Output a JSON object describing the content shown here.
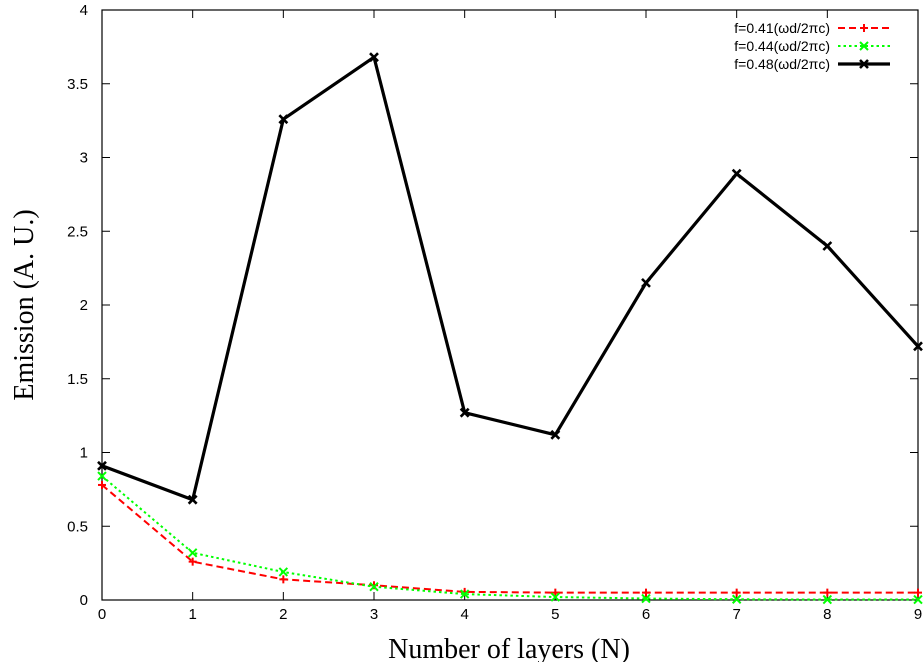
{
  "chart_data": {
    "type": "line",
    "title": "",
    "xlabel": "Number of layers (N)",
    "ylabel": "Emission (A. U.)",
    "xlim": [
      0,
      9
    ],
    "ylim": [
      0,
      4
    ],
    "x_ticks": [
      "0",
      "1",
      "2",
      "3",
      "4",
      "5",
      "6",
      "7",
      "8",
      "9"
    ],
    "y_ticks": [
      "0",
      "0.5",
      "1",
      "1.5",
      "2",
      "2.5",
      "3",
      "3.5",
      "4"
    ],
    "grid": false,
    "legend_position": "top-right",
    "x": [
      0,
      1,
      2,
      3,
      4,
      5,
      6,
      7,
      8,
      9
    ],
    "series": [
      {
        "name": "f=0.41(ωd/2πc)",
        "color": "#ff0000",
        "line_style": "dashed",
        "marker": "plus",
        "values": [
          0.78,
          0.26,
          0.14,
          0.1,
          0.055,
          0.05,
          0.05,
          0.05,
          0.05,
          0.05
        ]
      },
      {
        "name": "f=0.44(ωd/2πc)",
        "color": "#00ff00",
        "line_style": "dotted",
        "marker": "cross",
        "values": [
          0.84,
          0.32,
          0.19,
          0.09,
          0.04,
          0.02,
          0.01,
          0.005,
          0.003,
          0.003
        ]
      },
      {
        "name": "f=0.48(ωd/2πc)",
        "color": "#000000",
        "line_style": "solid",
        "marker": "cross",
        "values": [
          0.91,
          0.68,
          3.26,
          3.68,
          1.27,
          1.12,
          2.15,
          2.89,
          2.4,
          1.72
        ]
      }
    ]
  }
}
